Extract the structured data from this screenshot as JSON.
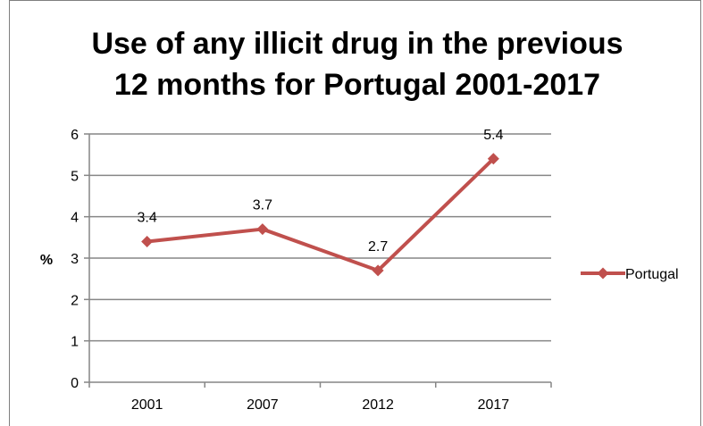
{
  "chart_data": {
    "type": "line",
    "title_line1": "Use of any illicit drug in the previous",
    "title_line2": "12 months for Portugal 2001-2017",
    "categories": [
      "2001",
      "2007",
      "2012",
      "2017"
    ],
    "series": [
      {
        "name": "Portugal",
        "values": [
          3.4,
          3.7,
          2.7,
          5.4
        ],
        "labels": [
          "3.4",
          "3.7",
          "2.7",
          "5.4"
        ],
        "color": "#c0504d"
      }
    ],
    "ylabel": "%",
    "xlabel": "",
    "ylim": [
      0,
      6
    ],
    "yticks": [
      "0",
      "1",
      "2",
      "3",
      "4",
      "5",
      "6"
    ],
    "grid": "horizontal",
    "legend": "right"
  }
}
